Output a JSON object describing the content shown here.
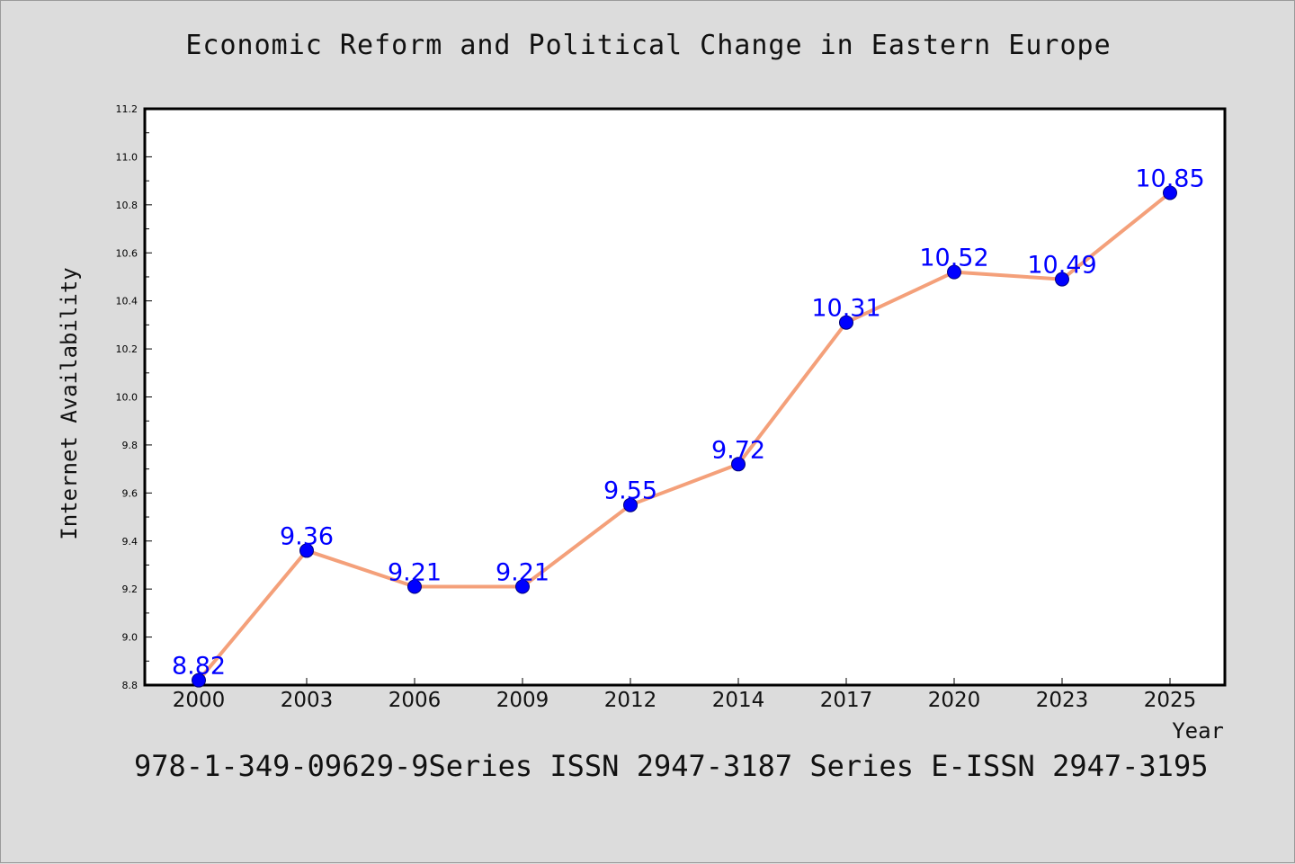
{
  "title": "Economic Reform and Political Change in Eastern Europe",
  "footer": "978-1-349-09629-9Series ISSN 2947-3187 Series E-ISSN 2947-3195",
  "colors": {
    "background": "#dcdcdc",
    "line": "#f4a07a",
    "marker": "#0000ff",
    "data_label": "#0000ff"
  },
  "chart_data": {
    "type": "line",
    "title": "Economic Reform and Political Change in Eastern Europe",
    "xlabel": "Year",
    "ylabel": "Internet Availability",
    "categories": [
      "2000",
      "2003",
      "2006",
      "2009",
      "2012",
      "2014",
      "2017",
      "2020",
      "2023",
      "2025"
    ],
    "series": [
      {
        "values": [
          8.82,
          9.36,
          9.21,
          9.21,
          9.55,
          9.72,
          10.31,
          10.52,
          10.49,
          10.85
        ],
        "labels": [
          "8.82",
          "9.36",
          "9.21",
          "9.21",
          "9.55",
          "9.72",
          "10.31",
          "10.52",
          "10.49",
          "10.85"
        ]
      }
    ],
    "ylim": [
      8.8,
      11.2
    ],
    "yticks": [
      "8.8",
      "9.0",
      "9.2",
      "9.4",
      "9.6",
      "9.8",
      "10.0",
      "10.2",
      "10.4",
      "10.6",
      "10.8",
      "11.0",
      "11.2"
    ],
    "grid": false,
    "legend": "none"
  }
}
